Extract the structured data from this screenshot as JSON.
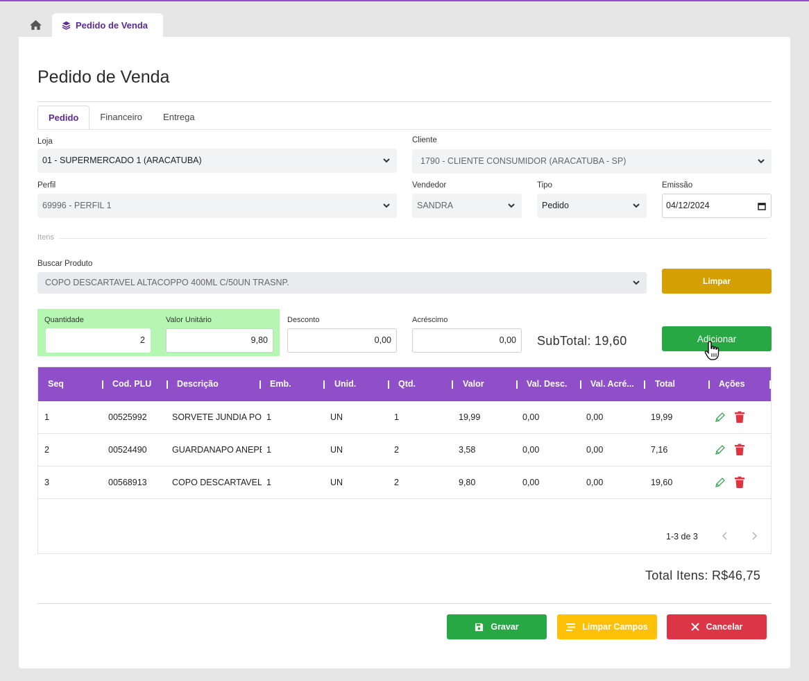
{
  "tabs": {
    "home_icon": "home-icon",
    "active_label": "Pedido de Venda",
    "active_icon": "layers-icon"
  },
  "page": {
    "title": "Pedido de Venda",
    "subtabs": [
      "Pedido",
      "Financeiro",
      "Entrega"
    ]
  },
  "form": {
    "loja": {
      "label": "Loja",
      "value": "01 - SUPERMERCADO 1 (ARACATUBA)"
    },
    "cliente": {
      "label": "Cliente",
      "value": "1790 - CLIENTE CONSUMIDOR  (ARACATUBA - SP)"
    },
    "perfil": {
      "label": "Perfil",
      "value": "69996 - PERFIL 1"
    },
    "vendedor": {
      "label": "Vendedor",
      "value": "SANDRA"
    },
    "tipo": {
      "label": "Tipo",
      "value": "Pedido"
    },
    "emissao": {
      "label": "Emissão",
      "value": "04/12/2024"
    }
  },
  "itens": {
    "section_label": "Itens",
    "buscar_label": "Buscar Produto",
    "buscar_value": "COPO DESCARTAVEL ALTACOPPO 400ML C/50UN TRASNP.",
    "limpar_label": "Limpar",
    "quantidade_label": "Quantidade",
    "quantidade_value": "2",
    "valor_unitario_label": "Valor Unitário",
    "valor_unitario_value": "9,80",
    "desconto_label": "Desconto",
    "desconto_value": "0,00",
    "acrescimo_label": "Acréscimo",
    "acrescimo_value": "0,00",
    "subtotal": "SubTotal: 19,60",
    "adicionar_label": "Adicionar"
  },
  "table": {
    "columns": [
      "Seq",
      "Cod. PLU",
      "Descrição",
      "Emb.",
      "Unid.",
      "Qtd.",
      "Valor",
      "Val. Desc.",
      "Val. Acré...",
      "Total",
      "Ações"
    ],
    "rows": [
      [
        "1",
        "00525992",
        "SORVETE JUNDIA POTE",
        "1",
        "UN",
        "1",
        "19,99",
        "0,00",
        "0,00",
        "19,99"
      ],
      [
        "2",
        "00524490",
        "GUARDANAPO ANEPEL",
        "1",
        "UN",
        "2",
        "3,58",
        "0,00",
        "0,00",
        "7,16"
      ],
      [
        "3",
        "00568913",
        "COPO DESCARTAVEL ALTACOPPO",
        "1",
        "UN",
        "2",
        "9,80",
        "0,00",
        "0,00",
        "19,60"
      ]
    ],
    "pagination": "1-3 de 3"
  },
  "total_itens": "Total Itens: R$46,75",
  "actions": {
    "gravar": "Gravar",
    "limpar_campos": "Limpar Campos",
    "cancelar": "Cancelar"
  },
  "colors": {
    "accent": "#8e4fc9",
    "accent_dark": "#5b2a93",
    "green": "#28a745",
    "yellow": "#ffc107",
    "gold": "#d4a004",
    "red": "#dc3545",
    "light_green": "#b5f6b2"
  }
}
